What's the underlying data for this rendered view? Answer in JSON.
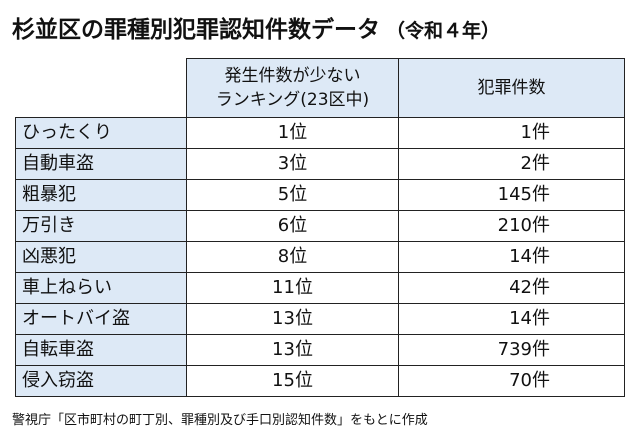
{
  "title": {
    "main": "杉並区の罪種別犯罪認知件数データ",
    "sub": "（令和４年）"
  },
  "table": {
    "header_rank_line1": "発生件数が少ない",
    "header_rank_line2": "ランキング(23区中)",
    "header_count": "犯罪件数",
    "rows": [
      {
        "name": "ひったくり",
        "rank": "1位",
        "count": "1件"
      },
      {
        "name": "自動車盗",
        "rank": "3位",
        "count": "2件"
      },
      {
        "name": "粗暴犯",
        "rank": "5位",
        "count": "145件"
      },
      {
        "name": "万引き",
        "rank": "6位",
        "count": "210件"
      },
      {
        "name": "凶悪犯",
        "rank": "8位",
        "count": "14件"
      },
      {
        "name": "車上ねらい",
        "rank": "11位",
        "count": "42件"
      },
      {
        "name": "オートバイ盗",
        "rank": "13位",
        "count": "14件"
      },
      {
        "name": "自転車盗",
        "rank": "13位",
        "count": "739件"
      },
      {
        "name": "侵入窃盗",
        "rank": "15位",
        "count": "70件"
      }
    ]
  },
  "source": "警視庁「区市町村の町丁別、罪種別及び手口別認知件数」をもとに作成",
  "colors": {
    "header_fill": "#dde9f6",
    "name_fill": "#dde9f6",
    "border": "#222222"
  }
}
